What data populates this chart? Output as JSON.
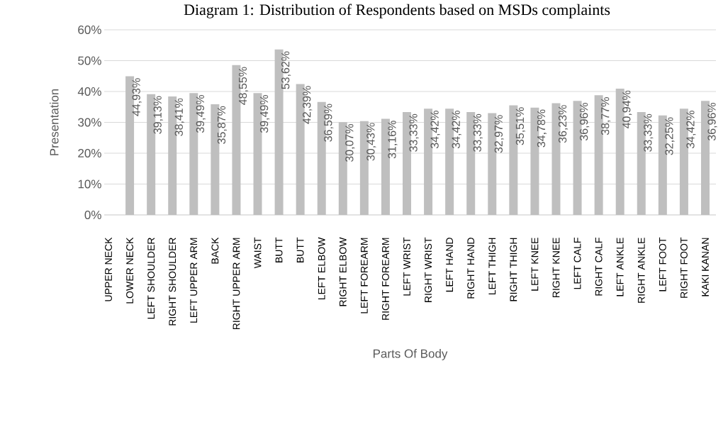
{
  "chart_data": {
    "type": "bar",
    "title": "Diagram 1: Distribution of Respondents based on MSDs complaints",
    "xlabel": "Parts Of Body",
    "ylabel": "Presentation",
    "categories": [
      "UPPER NECK",
      "LOWER NECK",
      "LEFT SHOULDER",
      "RIGHT SHOULDER",
      "LEFT UPPER ARM",
      "BACK",
      "RIGHT UPPER ARM",
      "WAIST",
      "BUTT",
      "BUTT",
      "LEFT ELBOW",
      "RIGHT ELBOW",
      "LEFT FOREARM",
      "RIGHT FOREARM",
      "LEFT WRIST",
      "RIGHT WRIST",
      "LEFT HAND",
      "RIGHT HAND",
      "LEFT THIGH",
      "RIGHT THIGH",
      "LEFT KNEE",
      "RIGHT KNEE",
      "LEFT CALF",
      "RIGHT CALF",
      "LEFT ANKLE",
      "RIGHT ANKLE",
      "LEFT FOOT",
      "RIGHT FOOT",
      "KAKI KANAN"
    ],
    "values": [
      null,
      44.93,
      39.13,
      38.41,
      39.49,
      35.87,
      48.55,
      39.49,
      53.62,
      42.39,
      36.59,
      30.07,
      30.43,
      31.16,
      33.33,
      34.42,
      34.42,
      33.33,
      32.97,
      35.51,
      34.78,
      36.23,
      36.96,
      38.77,
      40.94,
      33.33,
      32.25,
      34.42,
      36.96
    ],
    "value_labels": [
      null,
      "44,93%",
      "39,13%",
      "38,41%",
      "39,49%",
      "35,87%",
      "48,55%",
      "39,49%",
      "53,62%",
      "42,39%",
      "36,59%",
      "30,07%",
      "30,43%",
      "31,16%",
      "33,33%",
      "34,42%",
      "34,42%",
      "33,33%",
      "32,97%",
      "35,51%",
      "34,78%",
      "36,23%",
      "36,96%",
      "38,77%",
      "40,94%",
      "33,33%",
      "32,25%",
      "34,42%",
      "36,96%"
    ],
    "color": "#bfbfbf",
    "ylim": [
      0,
      60
    ],
    "yticks": [
      {
        "value": 0,
        "label": "0%"
      },
      {
        "value": 10,
        "label": "10%"
      },
      {
        "value": 20,
        "label": "20%"
      },
      {
        "value": 30,
        "label": "30%"
      },
      {
        "value": 40,
        "label": "40%"
      },
      {
        "value": 50,
        "label": "50%"
      },
      {
        "value": 60,
        "label": "60%"
      }
    ],
    "grid": "y"
  }
}
